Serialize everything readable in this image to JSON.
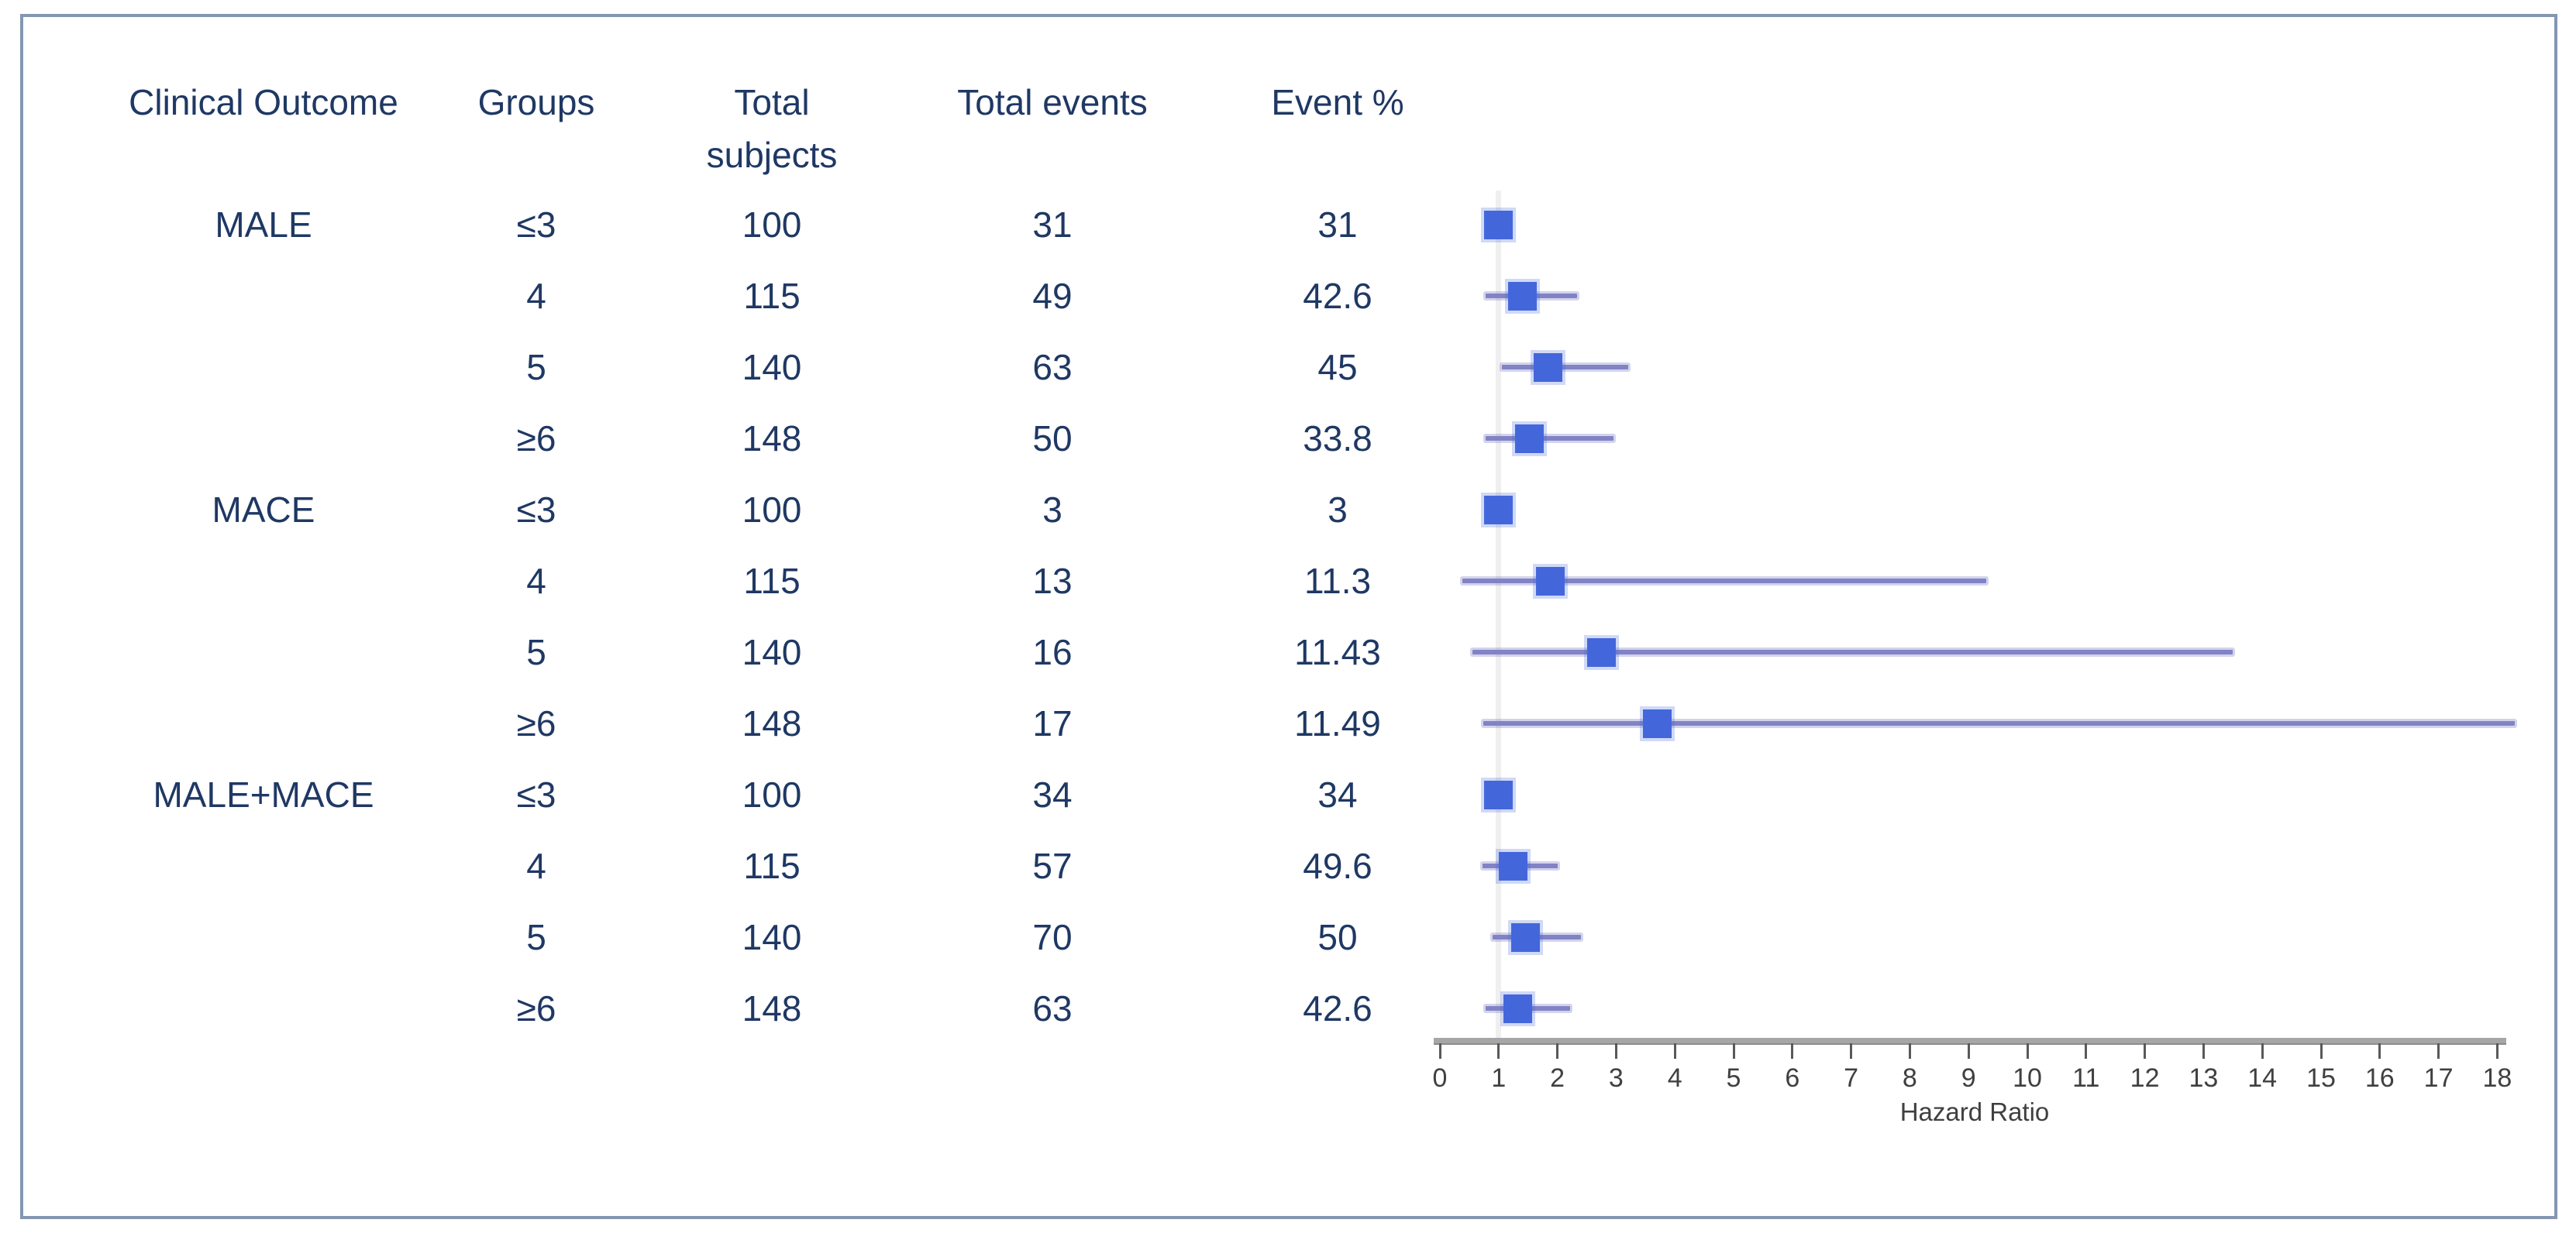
{
  "colors": {
    "text_navy": "#1F3864",
    "marker_blue": "#4367DB",
    "marker_glow": "rgba(67,103,219,0.25)",
    "ci_line": "#8183C6",
    "ci_glow": "rgba(129,131,198,0.35)",
    "reference_line": "#EFEFEF",
    "axis_bar": "#A6A6A6",
    "axis_tick": "#595959",
    "axis_text": "#404040",
    "frame_border": "#8496B0"
  },
  "table": {
    "headers": [
      "Clinical Outcome",
      "Groups",
      "Total\nsubjects",
      "Total events",
      "Event %"
    ]
  },
  "chart_data": {
    "type": "scatter",
    "subtype": "forest-plot",
    "title": "",
    "xlabel": "Hazard Ratio",
    "xlim": [
      0,
      18
    ],
    "xticks": [
      0,
      1,
      2,
      3,
      4,
      5,
      6,
      7,
      8,
      9,
      10,
      11,
      12,
      13,
      14,
      15,
      16,
      17,
      18
    ],
    "reference_line_x": 1,
    "grid": false,
    "rows": [
      {
        "outcome": "MALE",
        "group": "≤3",
        "total_subjects": "100",
        "total_events": "31",
        "event_pct": "31",
        "hr": 1.0,
        "ci": null
      },
      {
        "outcome": "",
        "group": "4",
        "total_subjects": "115",
        "total_events": "49",
        "event_pct": "42.6",
        "hr": 1.4,
        "ci": [
          0.78,
          2.33
        ]
      },
      {
        "outcome": "",
        "group": "5",
        "total_subjects": "140",
        "total_events": "63",
        "event_pct": "45",
        "hr": 1.84,
        "ci": [
          1.06,
          3.2
        ]
      },
      {
        "outcome": "",
        "group": "≥6",
        "total_subjects": "148",
        "total_events": "50",
        "event_pct": "33.8",
        "hr": 1.52,
        "ci": [
          0.78,
          2.95
        ]
      },
      {
        "outcome": "MACE",
        "group": "≤3",
        "total_subjects": "100",
        "total_events": "3",
        "event_pct": "3",
        "hr": 1.0,
        "ci": null
      },
      {
        "outcome": "",
        "group": "4",
        "total_subjects": "115",
        "total_events": "13",
        "event_pct": "11.3",
        "hr": 1.88,
        "ci": [
          0.38,
          9.3
        ]
      },
      {
        "outcome": "",
        "group": "5",
        "total_subjects": "140",
        "total_events": "16",
        "event_pct": "11.43",
        "hr": 2.75,
        "ci": [
          0.55,
          13.5
        ]
      },
      {
        "outcome": "",
        "group": "≥6",
        "total_subjects": "148",
        "total_events": "17",
        "event_pct": "11.49",
        "hr": 3.7,
        "ci": [
          0.74,
          18.3
        ]
      },
      {
        "outcome": "MALE+MACE",
        "group": "≤3",
        "total_subjects": "100",
        "total_events": "34",
        "event_pct": "34",
        "hr": 1.0,
        "ci": null
      },
      {
        "outcome": "",
        "group": "4",
        "total_subjects": "115",
        "total_events": "57",
        "event_pct": "49.6",
        "hr": 1.25,
        "ci": [
          0.73,
          2.0
        ]
      },
      {
        "outcome": "",
        "group": "5",
        "total_subjects": "140",
        "total_events": "70",
        "event_pct": "50",
        "hr": 1.46,
        "ci": [
          0.9,
          2.4
        ]
      },
      {
        "outcome": "",
        "group": "≥6",
        "total_subjects": "148",
        "total_events": "63",
        "event_pct": "42.6",
        "hr": 1.33,
        "ci": [
          0.78,
          2.22
        ]
      }
    ]
  }
}
